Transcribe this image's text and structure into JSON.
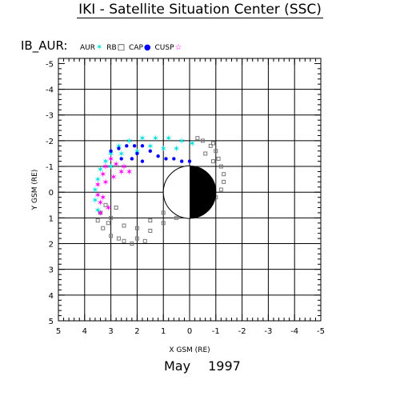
{
  "title": "IKI - Satellite Situation Center (SSC)",
  "satellite_label": "IB_AUR:",
  "legend": [
    {
      "label": "AUR",
      "symbol": "star",
      "color": "#00e0e0"
    },
    {
      "label": "RB",
      "symbol": "square",
      "color": "#000000"
    },
    {
      "label": "CAP",
      "symbol": "dot",
      "color": "#0000ff"
    },
    {
      "label": "CUSP",
      "symbol": "star",
      "color": "#ff00ff"
    }
  ],
  "date": {
    "month": "May",
    "year": "1997"
  },
  "colors": {
    "aur": "#00e0e0",
    "rb": "#777777",
    "cap": "#0000ff",
    "cusp": "#ff00ff",
    "earth_night": "#000000"
  },
  "chart_data": {
    "type": "scatter",
    "title": "IKI - Satellite Situation Center (SSC)",
    "xlabel": "X GSM (RE)",
    "ylabel": "Y GSM (RE)",
    "xlim": [
      5,
      -5
    ],
    "ylim": [
      -5.2,
      5
    ],
    "x_ticks": [
      "5",
      "4",
      "3",
      "2",
      "1",
      "0",
      "-1",
      "-2",
      "-3",
      "-4",
      "-5"
    ],
    "y_ticks": [
      "-5",
      "-4",
      "-3",
      "-2",
      "-1",
      "0",
      "1",
      "2",
      "3",
      "4",
      "5"
    ],
    "grid": true,
    "earth": {
      "center": [
        0,
        0
      ],
      "radius": 1,
      "night_side": "x<0"
    },
    "series": [
      {
        "name": "RB",
        "marker": "square",
        "points": [
          [
            -0.8,
            -1.8
          ],
          [
            -1.0,
            -1.6
          ],
          [
            -1.1,
            -1.3
          ],
          [
            -1.2,
            -1.0
          ],
          [
            -1.3,
            -0.7
          ],
          [
            -1.3,
            -0.4
          ],
          [
            -1.2,
            -0.1
          ],
          [
            -1.0,
            0.2
          ],
          [
            -0.7,
            0.6
          ],
          [
            0.5,
            1.0
          ],
          [
            1.0,
            1.2
          ],
          [
            1.5,
            1.5
          ],
          [
            2.0,
            1.8
          ],
          [
            2.5,
            1.9
          ],
          [
            3.0,
            1.7
          ],
          [
            3.3,
            1.4
          ],
          [
            3.5,
            1.1
          ],
          [
            3.0,
            1.0
          ],
          [
            2.5,
            1.3
          ],
          [
            2.0,
            1.4
          ],
          [
            1.5,
            1.1
          ],
          [
            1.0,
            0.8
          ],
          [
            0.5,
            0.7
          ],
          [
            2.8,
            0.6
          ],
          [
            3.2,
            0.5
          ],
          [
            -0.5,
            -2.0
          ],
          [
            -0.3,
            -2.1
          ],
          [
            -0.9,
            -1.9
          ],
          [
            -0.6,
            -1.5
          ],
          [
            -0.9,
            -1.2
          ],
          [
            1.7,
            1.9
          ],
          [
            2.2,
            2.0
          ],
          [
            2.7,
            1.8
          ],
          [
            3.4,
            0.8
          ],
          [
            3.1,
            1.2
          ]
        ]
      },
      {
        "name": "AUR",
        "marker": "star",
        "points": [
          [
            3.5,
            -0.5
          ],
          [
            3.4,
            -0.9
          ],
          [
            3.2,
            -1.2
          ],
          [
            3.0,
            -1.5
          ],
          [
            2.7,
            -1.8
          ],
          [
            2.3,
            -2.0
          ],
          [
            1.8,
            -2.1
          ],
          [
            1.3,
            -2.1
          ],
          [
            0.8,
            -2.1
          ],
          [
            0.3,
            -2.0
          ],
          [
            -0.1,
            -1.9
          ],
          [
            3.6,
            -0.1
          ],
          [
            3.6,
            0.3
          ],
          [
            3.5,
            0.7
          ],
          [
            2.0,
            -1.6
          ],
          [
            1.5,
            -1.8
          ],
          [
            1.0,
            -1.7
          ],
          [
            0.5,
            -1.7
          ],
          [
            2.6,
            -1.5
          ],
          [
            3.0,
            -1.0
          ]
        ]
      },
      {
        "name": "CAP",
        "marker": "dot",
        "points": [
          [
            3.0,
            -1.6
          ],
          [
            2.7,
            -1.7
          ],
          [
            2.4,
            -1.8
          ],
          [
            2.1,
            -1.8
          ],
          [
            1.8,
            -1.8
          ],
          [
            1.5,
            -1.6
          ],
          [
            1.2,
            -1.4
          ],
          [
            0.9,
            -1.3
          ],
          [
            0.6,
            -1.3
          ],
          [
            0.3,
            -1.2
          ],
          [
            0.0,
            -1.2
          ],
          [
            2.6,
            -1.3
          ],
          [
            2.2,
            -1.3
          ],
          [
            1.8,
            -1.2
          ],
          [
            2.0,
            -1.5
          ]
        ]
      },
      {
        "name": "CUSP",
        "marker": "star",
        "points": [
          [
            3.5,
            -0.3
          ],
          [
            3.5,
            0.1
          ],
          [
            3.4,
            0.4
          ],
          [
            3.3,
            -0.7
          ],
          [
            3.2,
            -1.0
          ],
          [
            3.0,
            -1.3
          ],
          [
            2.8,
            -1.1
          ],
          [
            2.5,
            -1.0
          ],
          [
            2.3,
            -0.8
          ],
          [
            3.1,
            0.6
          ],
          [
            3.4,
            0.8
          ],
          [
            3.2,
            -0.4
          ],
          [
            2.9,
            -0.6
          ],
          [
            2.6,
            -0.8
          ],
          [
            3.3,
            0.2
          ]
        ]
      }
    ]
  }
}
